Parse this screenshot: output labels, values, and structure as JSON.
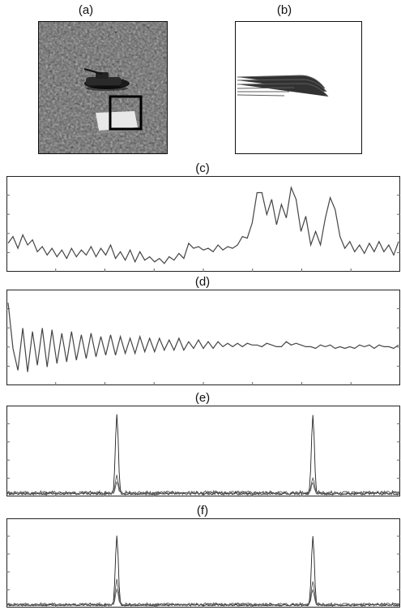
{
  "panels": {
    "a": {
      "label": "(a)",
      "image": "aerial-tank-scene"
    },
    "b": {
      "label": "(b)",
      "image": "texture-feature-map"
    },
    "c": {
      "label": "(c)"
    },
    "d": {
      "label": "(d)"
    },
    "e": {
      "label": "(e)"
    },
    "f": {
      "label": "(f)"
    }
  },
  "colors": {
    "line": "#444444",
    "axis": "#222222",
    "tank_box": "#000000"
  },
  "chart_data": [
    {
      "id": "c",
      "type": "line",
      "title": "(c)",
      "xlim": [
        0,
        80
      ],
      "ylim": [
        0,
        1
      ],
      "series": [
        {
          "values": [
            0.28,
            0.36,
            0.22,
            0.38,
            0.26,
            0.32,
            0.18,
            0.24,
            0.14,
            0.22,
            0.12,
            0.2,
            0.1,
            0.22,
            0.12,
            0.2,
            0.14,
            0.24,
            0.12,
            0.22,
            0.14,
            0.26,
            0.1,
            0.18,
            0.08,
            0.2,
            0.06,
            0.18,
            0.08,
            0.12,
            0.06,
            0.1,
            0.04,
            0.12,
            0.08,
            0.16,
            0.1,
            0.28,
            0.22,
            0.24,
            0.2,
            0.22,
            0.18,
            0.26,
            0.2,
            0.24,
            0.22,
            0.26,
            0.36,
            0.34,
            0.52,
            0.88,
            0.88,
            0.62,
            0.8,
            0.5,
            0.74,
            0.58,
            0.94,
            0.8,
            0.42,
            0.6,
            0.26,
            0.42,
            0.26,
            0.58,
            0.82,
            0.68,
            0.36,
            0.22,
            0.3,
            0.18,
            0.26,
            0.16,
            0.28,
            0.18,
            0.3,
            0.18,
            0.26,
            0.14,
            0.3
          ]
        }
      ]
    },
    {
      "id": "d",
      "type": "line",
      "title": "(d)",
      "xlim": [
        0,
        80
      ],
      "ylim": [
        0,
        1
      ],
      "series": [
        {
          "values": [
            0.92,
            0.38,
            0.12,
            0.62,
            0.1,
            0.58,
            0.18,
            0.62,
            0.16,
            0.6,
            0.2,
            0.56,
            0.22,
            0.58,
            0.24,
            0.54,
            0.26,
            0.56,
            0.28,
            0.52,
            0.3,
            0.54,
            0.3,
            0.52,
            0.32,
            0.5,
            0.32,
            0.52,
            0.34,
            0.5,
            0.34,
            0.5,
            0.36,
            0.48,
            0.36,
            0.5,
            0.36,
            0.46,
            0.38,
            0.48,
            0.38,
            0.46,
            0.38,
            0.46,
            0.4,
            0.44,
            0.4,
            0.44,
            0.4,
            0.44,
            0.42,
            0.42,
            0.4,
            0.44,
            0.42,
            0.4,
            0.4,
            0.46,
            0.42,
            0.44,
            0.42,
            0.4,
            0.4,
            0.38,
            0.42,
            0.4,
            0.42,
            0.38,
            0.4,
            0.38,
            0.4,
            0.38,
            0.42,
            0.4,
            0.42,
            0.38,
            0.42,
            0.4,
            0.4,
            0.38,
            0.42
          ]
        }
      ]
    },
    {
      "id": "e",
      "type": "line",
      "title": "(e)",
      "xlim": [
        0,
        340
      ],
      "ylim": [
        0,
        1
      ],
      "series": [
        {
          "peaks": [
            95,
            265
          ],
          "peak_height": 0.95,
          "noise": 0.03
        },
        {
          "peaks": [
            95,
            265
          ],
          "peak_height": 0.2,
          "noise": 0.05
        },
        {
          "peaks": [
            95,
            265
          ],
          "peak_height": 0.12,
          "noise": 0.04
        }
      ]
    },
    {
      "id": "f",
      "type": "line",
      "title": "(f)",
      "xlim": [
        0,
        340
      ],
      "ylim": [
        0,
        1
      ],
      "series": [
        {
          "peaks": [
            95,
            265
          ],
          "peak_height": 0.85,
          "noise": 0.02
        },
        {
          "peaks": [
            95,
            265
          ],
          "peak_height": 0.3,
          "noise": 0.04
        },
        {
          "peaks": [
            95,
            265
          ],
          "peak_height": 0.18,
          "noise": 0.03
        }
      ]
    }
  ]
}
